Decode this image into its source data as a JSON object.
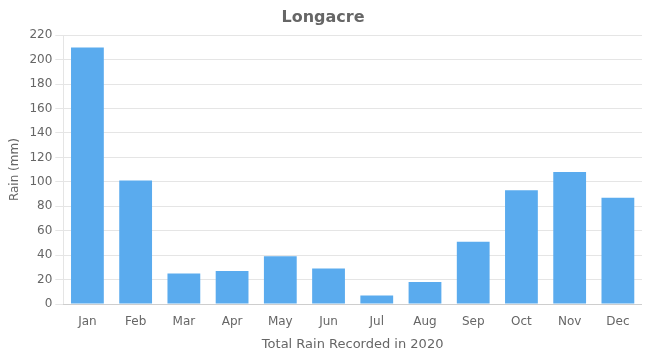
{
  "chart_data": {
    "type": "bar",
    "title": "Longacre",
    "xlabel": "Total Rain Recorded in 2020",
    "ylabel": "Rain (mm)",
    "categories": [
      "Jan",
      "Feb",
      "Mar",
      "Apr",
      "May",
      "Jun",
      "Jul",
      "Aug",
      "Sep",
      "Oct",
      "Nov",
      "Dec"
    ],
    "values": [
      210,
      101,
      25,
      27,
      39,
      29,
      7,
      18,
      51,
      93,
      108,
      87
    ],
    "color": "#5aabee",
    "ylim": [
      0,
      220
    ],
    "yticks": [
      0,
      20,
      40,
      60,
      80,
      100,
      120,
      140,
      160,
      180,
      200,
      220
    ],
    "grid": true
  }
}
